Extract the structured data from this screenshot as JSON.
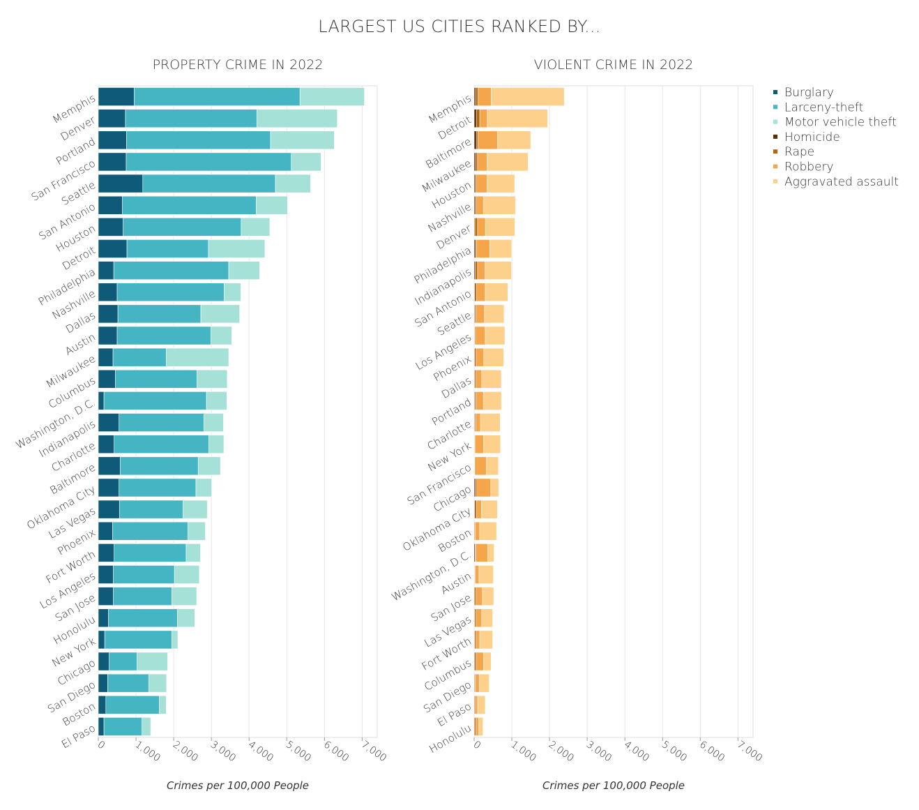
{
  "title": "LARGEST US CITIES RANKED BY...",
  "chart_data": [
    {
      "type": "bar",
      "orientation": "horizontal",
      "stacked": true,
      "title": "PROPERTY CRIME IN 2022",
      "xlabel": "Crimes per 100,000 People",
      "ylabel": "",
      "xlim": [
        0,
        7400
      ],
      "ticks": [
        "0",
        "1,000",
        "2,000",
        "3,000",
        "4,000",
        "5,000",
        "6,000",
        "7,000"
      ],
      "tick_values": [
        0,
        1000,
        2000,
        3000,
        4000,
        5000,
        6000,
        7000
      ],
      "grid": true,
      "categories": [
        "Memphis",
        "Denver",
        "Portland",
        "San Francisco",
        "Seattle",
        "San Antonio",
        "Houston",
        "Detroit",
        "Philadelphia",
        "Nashville",
        "Dallas",
        "Austin",
        "Milwaukee",
        "Columbus",
        "Washington, D.C.",
        "Indianapolis",
        "Charlotte",
        "Baltimore",
        "Oklahoma City",
        "Las Vegas",
        "Phoenix",
        "Fort Worth",
        "Los Angeles",
        "San Jose",
        "Honolulu",
        "New York",
        "Chicago",
        "San Diego",
        "Boston",
        "El Paso"
      ],
      "series": [
        {
          "name": "Burglary",
          "color": "#0e5a78",
          "values": [
            950,
            720,
            750,
            740,
            1180,
            640,
            660,
            760,
            410,
            500,
            520,
            500,
            390,
            450,
            150,
            550,
            420,
            580,
            550,
            560,
            380,
            420,
            400,
            400,
            270,
            170,
            290,
            250,
            200,
            150
          ]
        },
        {
          "name": "Larceny-theft",
          "color": "#45b5c4",
          "values": [
            4400,
            3490,
            3820,
            4380,
            3520,
            3550,
            3130,
            2160,
            3050,
            2840,
            2200,
            2490,
            1410,
            2170,
            2720,
            2250,
            2510,
            2070,
            2040,
            1690,
            2000,
            1910,
            1620,
            1550,
            1830,
            1780,
            740,
            1090,
            1420,
            1010
          ]
        },
        {
          "name": "Motor vehicle theft",
          "color": "#a6e1d8",
          "values": [
            1710,
            2130,
            1690,
            790,
            930,
            830,
            760,
            1500,
            820,
            440,
            1030,
            550,
            1660,
            800,
            540,
            520,
            400,
            590,
            420,
            640,
            460,
            380,
            660,
            660,
            460,
            160,
            810,
            470,
            180,
            230
          ]
        }
      ]
    },
    {
      "type": "bar",
      "orientation": "horizontal",
      "stacked": true,
      "title": "VIOLENT CRIME IN 2022",
      "xlabel": "Crimes per 100,000 People",
      "ylabel": "",
      "xlim": [
        0,
        7400
      ],
      "ticks": [
        "0",
        "1,000",
        "2,000",
        "3,000",
        "4,000",
        "5,000",
        "6,000",
        "7,000"
      ],
      "tick_values": [
        0,
        1000,
        2000,
        3000,
        4000,
        5000,
        6000,
        7000
      ],
      "grid": true,
      "categories": [
        "Memphis",
        "Detroit",
        "Baltimore",
        "Milwaukee",
        "Houston",
        "Nashville",
        "Denver",
        "Philadelphia",
        "Indianapolis",
        "San Antonio",
        "Seattle",
        "Los Angeles",
        "Phoenix",
        "Dallas",
        "Portland",
        "Charlotte",
        "New York",
        "San Francisco",
        "Chicago",
        "Oklahoma City",
        "Boston",
        "Washington, D.C.",
        "Austin",
        "San Jose",
        "Las Vegas",
        "Fort Worth",
        "Columbus",
        "San Diego",
        "El Paso",
        "Honolulu"
      ],
      "series": [
        {
          "name": "Homicide",
          "color": "#5a2e06",
          "values": [
            40,
            60,
            60,
            40,
            25,
            25,
            20,
            35,
            30,
            15,
            15,
            10,
            15,
            15,
            15,
            15,
            5,
            5,
            30,
            15,
            5,
            30,
            10,
            5,
            10,
            10,
            20,
            5,
            5,
            5
          ]
        },
        {
          "name": "Rape",
          "color": "#b5650c",
          "values": [
            60,
            90,
            40,
            50,
            40,
            40,
            70,
            30,
            60,
            50,
            30,
            25,
            40,
            35,
            30,
            25,
            15,
            10,
            40,
            50,
            20,
            20,
            20,
            45,
            40,
            40,
            40,
            25,
            30,
            40
          ]
        },
        {
          "name": "Robbery",
          "color": "#f5a64a",
          "values": [
            350,
            200,
            520,
            250,
            280,
            180,
            210,
            350,
            200,
            230,
            230,
            260,
            200,
            150,
            200,
            130,
            230,
            310,
            370,
            130,
            120,
            310,
            100,
            170,
            150,
            100,
            190,
            110,
            60,
            80
          ]
        },
        {
          "name": "Aggravated assault",
          "color": "#fdd08b",
          "values": [
            1940,
            1600,
            880,
            1090,
            730,
            850,
            780,
            580,
            700,
            600,
            520,
            520,
            530,
            520,
            480,
            520,
            450,
            320,
            210,
            420,
            450,
            170,
            380,
            300,
            290,
            340,
            200,
            260,
            200,
            110
          ]
        }
      ]
    }
  ],
  "legend": {
    "placement": "right",
    "items": [
      {
        "label": "Burglary",
        "color": "#0e5a78"
      },
      {
        "label": "Larceny-theft",
        "color": "#45b5c4"
      },
      {
        "label": "Motor vehicle theft",
        "color": "#a6e1d8"
      },
      {
        "label": "Homicide",
        "color": "#5a2e06"
      },
      {
        "label": "Rape",
        "color": "#b5650c"
      },
      {
        "label": "Robbery",
        "color": "#f5a64a"
      },
      {
        "label": "Aggravated assault",
        "color": "#fdd08b"
      }
    ]
  }
}
